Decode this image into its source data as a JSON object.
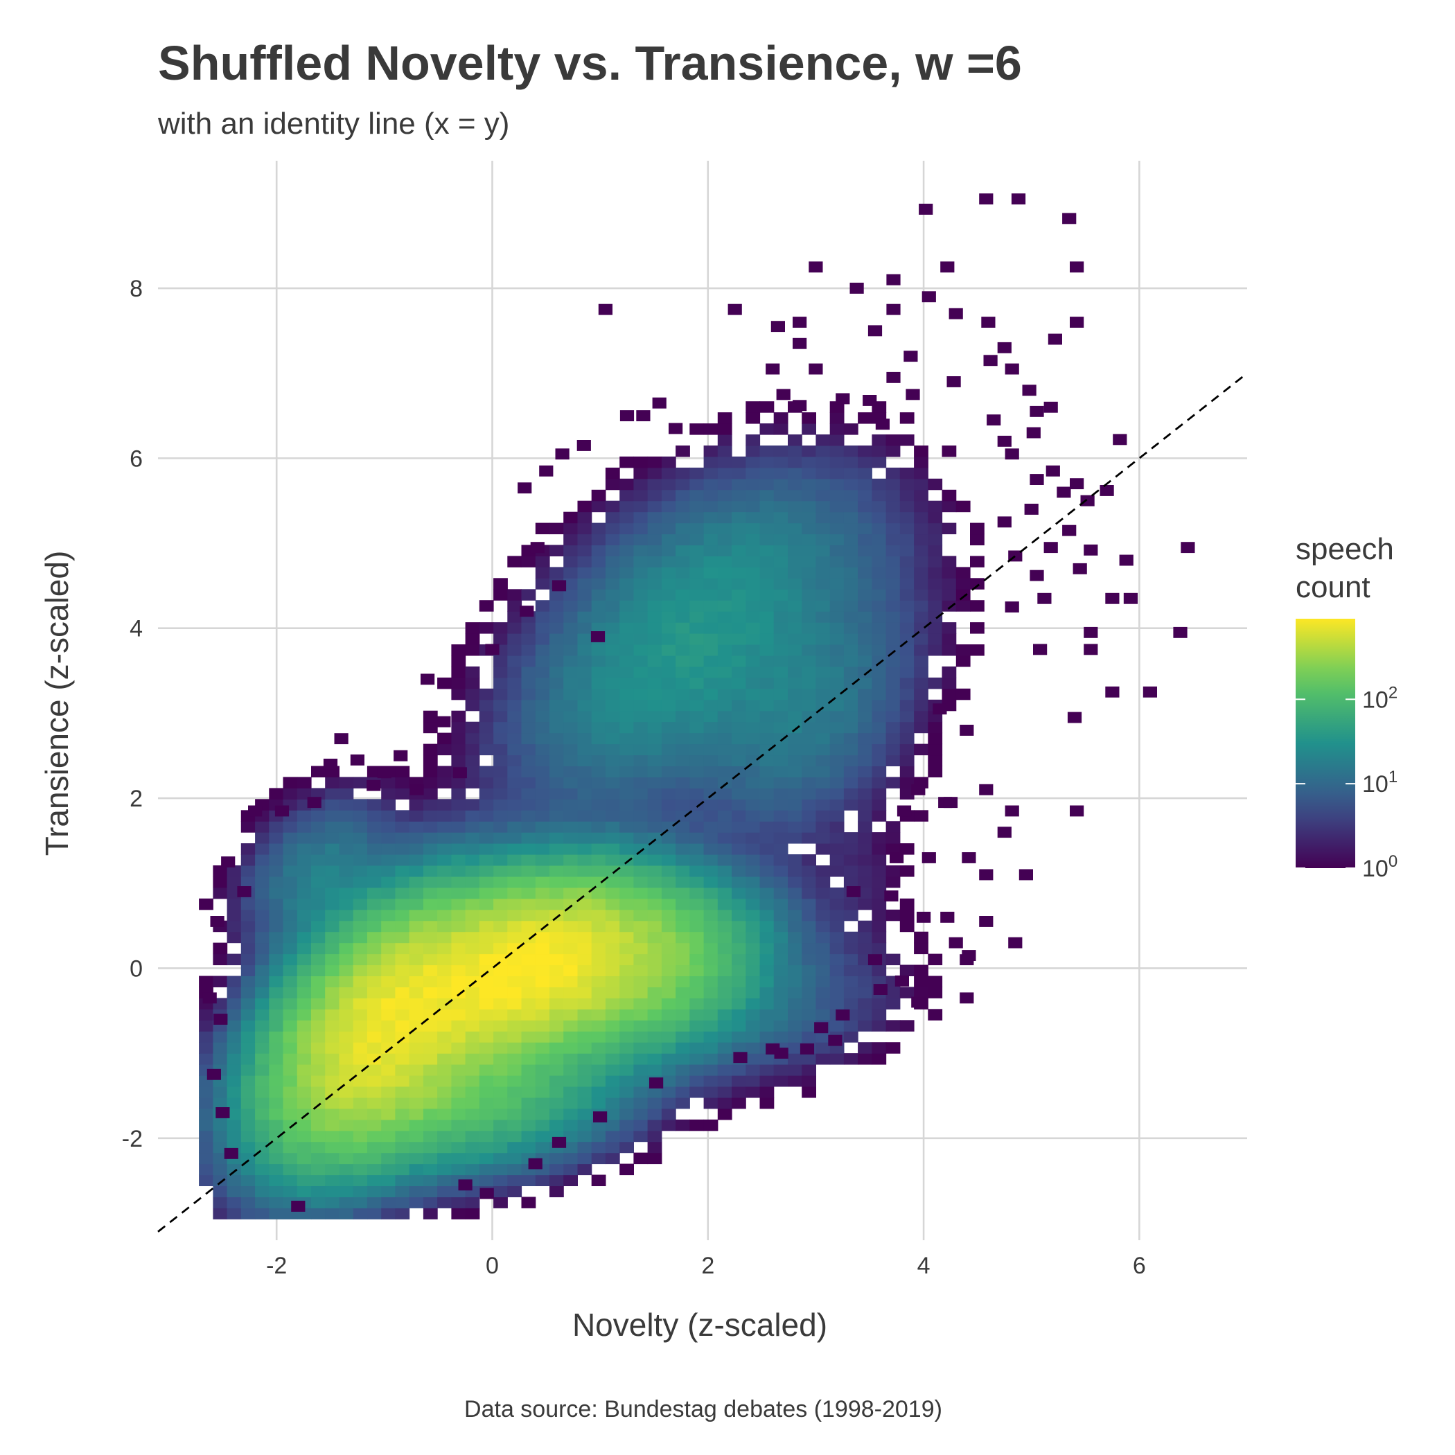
{
  "chart_data": {
    "type": "heatmap",
    "title": "Shuffled Novelty vs. Transience, w =6",
    "subtitle": "with an identity line (x = y)",
    "xlabel": "Novelty (z-scaled)",
    "ylabel": "Transience (z-scaled)",
    "caption": "Data source: Bundestag debates (1998-2019)",
    "xlim": [
      -3.1,
      7.0
    ],
    "ylim": [
      -3.2,
      9.5
    ],
    "x_ticks": [
      -2,
      0,
      2,
      4,
      6
    ],
    "y_ticks": [
      -2,
      0,
      2,
      4,
      6,
      8
    ],
    "x_tick_labels": [
      "-2",
      "0",
      "2",
      "4",
      "6"
    ],
    "y_tick_labels": [
      "-2",
      "0",
      "2",
      "4",
      "6",
      "8"
    ],
    "grid": true,
    "bin_width": 0.13,
    "fill_scale": "log10",
    "colormap": [
      "#440154",
      "#3b528b",
      "#21918c",
      "#5ec962",
      "#fde725"
    ],
    "identity_line": {
      "slope": 1,
      "intercept": 0,
      "dash": true,
      "color": "#000000"
    },
    "legend": {
      "title_lines": [
        "speech",
        "count"
      ],
      "position": "right",
      "range": [
        1,
        900
      ],
      "ticks": [
        1,
        10,
        100
      ],
      "tick_labels": [
        {
          "base": "10",
          "exp": "0"
        },
        {
          "base": "10",
          "exp": "1"
        },
        {
          "base": "10",
          "exp": "2"
        }
      ]
    },
    "density_components": [
      {
        "cx": -1.0,
        "cy": -0.7,
        "sx": 0.55,
        "sy": 0.75,
        "rho": 0.45,
        "peak": 720
      },
      {
        "cx": 0.3,
        "cy": 0.0,
        "sx": 0.6,
        "sy": 0.55,
        "rho": 0.35,
        "peak": 850
      },
      {
        "cx": 1.3,
        "cy": 0.0,
        "sx": 0.6,
        "sy": 0.5,
        "rho": 0.2,
        "peak": 260
      },
      {
        "cx": -0.3,
        "cy": -1.5,
        "sx": 0.75,
        "sy": 0.45,
        "rho": 0.2,
        "peak": 120
      },
      {
        "cx": 1.8,
        "cy": 3.8,
        "sx": 0.85,
        "sy": 1.0,
        "rho": 0.5,
        "peak": 35
      },
      {
        "cx": 2.9,
        "cy": 2.9,
        "sx": 0.55,
        "sy": 0.8,
        "rho": 0.4,
        "peak": 14
      },
      {
        "cx": -1.6,
        "cy": 1.1,
        "sx": 0.4,
        "sy": 0.5,
        "rho": 0.3,
        "peak": 18
      },
      {
        "cx": 2.4,
        "cy": 5.0,
        "sx": 0.8,
        "sy": 0.55,
        "rho": 0.2,
        "peak": 4
      },
      {
        "cx": 3.4,
        "cy": 3.8,
        "sx": 0.6,
        "sy": 1.1,
        "rho": 0.3,
        "peak": 2
      },
      {
        "cx": 2.3,
        "cy": -0.6,
        "sx": 0.8,
        "sy": 0.45,
        "rho": 0.3,
        "peak": 9
      },
      {
        "cx": 3.3,
        "cy": 0.7,
        "sx": 0.4,
        "sy": 0.8,
        "rho": 0.3,
        "peak": 2
      }
    ],
    "sparse_points": [
      [
        4.02,
        8.93
      ],
      [
        4.58,
        9.05
      ],
      [
        4.88,
        9.05
      ],
      [
        5.35,
        8.82
      ],
      [
        3.0,
        8.25
      ],
      [
        4.22,
        8.25
      ],
      [
        5.42,
        8.25
      ],
      [
        3.38,
        8.0
      ],
      [
        3.72,
        8.1
      ],
      [
        4.05,
        7.9
      ],
      [
        1.05,
        7.75
      ],
      [
        2.25,
        7.75
      ],
      [
        3.72,
        7.75
      ],
      [
        2.65,
        7.55
      ],
      [
        2.85,
        7.6
      ],
      [
        3.55,
        7.5
      ],
      [
        4.3,
        7.7
      ],
      [
        4.6,
        7.6
      ],
      [
        5.42,
        7.6
      ],
      [
        2.85,
        7.35
      ],
      [
        5.22,
        7.4
      ],
      [
        3.88,
        7.2
      ],
      [
        4.75,
        7.3
      ],
      [
        4.62,
        7.15
      ],
      [
        2.6,
        7.05
      ],
      [
        3.0,
        7.05
      ],
      [
        4.82,
        7.05
      ],
      [
        3.72,
        6.95
      ],
      [
        4.28,
        6.9
      ],
      [
        4.98,
        6.8
      ],
      [
        2.7,
        6.75
      ],
      [
        3.9,
        6.75
      ],
      [
        3.25,
        6.7
      ],
      [
        1.55,
        6.65
      ],
      [
        1.25,
        6.5
      ],
      [
        1.4,
        6.5
      ],
      [
        2.85,
        6.62
      ],
      [
        3.5,
        6.68
      ],
      [
        5.18,
        6.6
      ],
      [
        4.65,
        6.45
      ],
      [
        5.05,
        6.55
      ],
      [
        1.7,
        6.35
      ],
      [
        3.62,
        6.4
      ],
      [
        5.02,
        6.3
      ],
      [
        4.75,
        6.2
      ],
      [
        5.82,
        6.22
      ],
      [
        0.85,
        6.15
      ],
      [
        0.65,
        6.05
      ],
      [
        4.82,
        6.05
      ],
      [
        0.5,
        5.85
      ],
      [
        5.2,
        5.85
      ],
      [
        0.3,
        5.65
      ],
      [
        5.05,
        5.75
      ],
      [
        5.42,
        5.7
      ],
      [
        5.7,
        5.62
      ],
      [
        5.52,
        5.5
      ],
      [
        5.3,
        5.6
      ],
      [
        5.0,
        5.4
      ],
      [
        4.75,
        5.25
      ],
      [
        5.35,
        5.15
      ],
      [
        5.18,
        4.95
      ],
      [
        5.55,
        4.92
      ],
      [
        5.88,
        4.8
      ],
      [
        6.45,
        4.95
      ],
      [
        4.85,
        4.85
      ],
      [
        5.05,
        4.62
      ],
      [
        5.45,
        4.7
      ],
      [
        5.75,
        4.35
      ],
      [
        5.92,
        4.35
      ],
      [
        5.12,
        4.35
      ],
      [
        4.82,
        4.25
      ],
      [
        5.55,
        3.95
      ],
      [
        6.38,
        3.95
      ],
      [
        5.55,
        3.75
      ],
      [
        5.08,
        3.75
      ],
      [
        5.75,
        3.25
      ],
      [
        6.1,
        3.25
      ],
      [
        5.4,
        2.95
      ],
      [
        4.15,
        3.05
      ],
      [
        4.4,
        2.8
      ],
      [
        3.95,
        2.1
      ],
      [
        4.2,
        1.95
      ],
      [
        4.25,
        1.95
      ],
      [
        4.58,
        2.1
      ],
      [
        5.42,
        1.85
      ],
      [
        3.82,
        1.85
      ],
      [
        4.82,
        1.85
      ],
      [
        4.75,
        1.6
      ],
      [
        3.75,
        1.3
      ],
      [
        4.05,
        1.3
      ],
      [
        4.42,
        1.3
      ],
      [
        4.58,
        1.1
      ],
      [
        4.95,
        1.1
      ],
      [
        3.35,
        0.9
      ],
      [
        3.7,
        0.85
      ],
      [
        4.0,
        0.6
      ],
      [
        4.22,
        0.6
      ],
      [
        4.58,
        0.55
      ],
      [
        4.85,
        0.3
      ],
      [
        4.3,
        0.3
      ],
      [
        4.4,
        0.1
      ],
      [
        3.95,
        -0.4
      ],
      [
        4.4,
        -0.35
      ],
      [
        4.42,
        0.15
      ],
      [
        -1.65,
        1.95
      ],
      [
        -2.2,
        1.85
      ],
      [
        -1.95,
        1.85
      ],
      [
        -2.45,
        1.25
      ],
      [
        -2.3,
        0.9
      ],
      [
        -2.55,
        0.55
      ],
      [
        -2.62,
        -0.35
      ],
      [
        -2.52,
        -0.6
      ],
      [
        -2.58,
        -1.25
      ],
      [
        -2.5,
        -1.7
      ],
      [
        -2.42,
        -2.18
      ],
      [
        -1.8,
        -2.8
      ],
      [
        -0.85,
        2.5
      ],
      [
        -1.0,
        2.3
      ],
      [
        -1.25,
        2.45
      ],
      [
        -0.45,
        2.9
      ],
      [
        0.32,
        4.2
      ],
      [
        0.42,
        4.95
      ],
      [
        0.62,
        4.5
      ],
      [
        0.98,
        3.9
      ],
      [
        0.0,
        3.75
      ],
      [
        -0.6,
        3.4
      ],
      [
        -1.4,
        2.7
      ],
      [
        -1.5,
        2.4
      ],
      [
        -1.1,
        2.15
      ],
      [
        -0.7,
        2.1
      ],
      [
        -0.3,
        2.3
      ],
      [
        -0.05,
        -2.65
      ],
      [
        -0.25,
        -2.55
      ],
      [
        0.4,
        -2.3
      ],
      [
        0.62,
        -2.05
      ],
      [
        1.0,
        -1.75
      ],
      [
        1.52,
        -1.35
      ],
      [
        2.3,
        -1.05
      ],
      [
        2.68,
        -1.0
      ],
      [
        2.6,
        -0.95
      ],
      [
        2.92,
        -0.95
      ],
      [
        3.18,
        -0.85
      ],
      [
        3.05,
        -0.7
      ],
      [
        3.25,
        -0.55
      ],
      [
        3.6,
        -0.25
      ],
      [
        3.8,
        -0.15
      ],
      [
        3.55,
        0.1
      ]
    ]
  }
}
